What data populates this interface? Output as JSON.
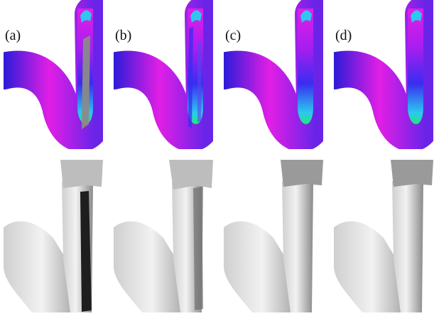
{
  "figure": {
    "panels": [
      {
        "label": "(a)",
        "variant": "a"
      },
      {
        "label": "(b)",
        "variant": "b"
      },
      {
        "label": "(c)",
        "variant": "c"
      },
      {
        "label": "(d)",
        "variant": "d"
      }
    ],
    "colors": {
      "tube_magenta": "#e21ee6",
      "tube_blue": "#3a2cf0",
      "tube_cyan": "#2cc8f0",
      "tube_green": "#1ee87a",
      "artifact_gray": "#8a8a8a",
      "arm_light": "#f2f2f2",
      "arm_shadow": "#6e6e6e",
      "arm_dark": "#1e1e1e"
    }
  }
}
